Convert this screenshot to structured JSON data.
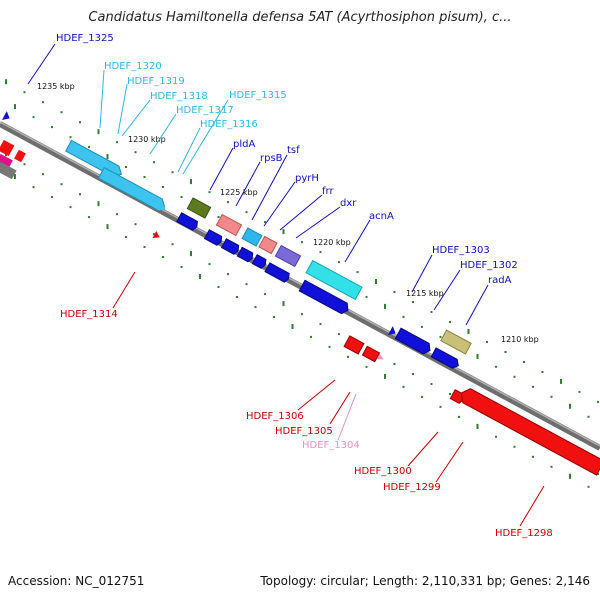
{
  "title": "Candidatus Hamiltonella defensa 5AT (Acyrthosiphon pisum), c...",
  "footer": {
    "accession": "Accession: NC_012751",
    "topology": "Topology: circular; Length: 2,110,331 bp; Genes: 2,146"
  },
  "colors": {
    "backbone": "#8a8a8a",
    "dots": "#2f7d2f",
    "label_blue": "#1010b8",
    "label_cyan": "#33b6e0",
    "label_red": "#c80000",
    "label_pink": "#e890c8"
  },
  "kbp_marks": [
    "1235 kbp",
    "1230 kbp",
    "1225 kbp",
    "1220 kbp",
    "1215 kbp",
    "1210 kbp"
  ],
  "gene_labels": [
    {
      "text": "HDEF_1325",
      "color": "#1010b8"
    },
    {
      "text": "HDEF_1320",
      "color": "#33b6e0"
    },
    {
      "text": "HDEF_1319",
      "color": "#33b6e0"
    },
    {
      "text": "HDEF_1318",
      "color": "#33b6e0"
    },
    {
      "text": "HDEF_1317",
      "color": "#33b6e0"
    },
    {
      "text": "HDEF_1316",
      "color": "#33b6e0"
    },
    {
      "text": "HDEF_1315",
      "color": "#33b6e0"
    },
    {
      "text": "pldA",
      "color": "#1010b8"
    },
    {
      "text": "rpsB",
      "color": "#1010b8"
    },
    {
      "text": "tsf",
      "color": "#1010b8"
    },
    {
      "text": "pyrH",
      "color": "#1010b8"
    },
    {
      "text": "frr",
      "color": "#1010b8"
    },
    {
      "text": "dxr",
      "color": "#1010b8"
    },
    {
      "text": "acnA",
      "color": "#1010b8"
    },
    {
      "text": "HDEF_1303",
      "color": "#1010b8"
    },
    {
      "text": "HDEF_1302",
      "color": "#1010b8"
    },
    {
      "text": "radA",
      "color": "#1010b8"
    },
    {
      "text": "HDEF_1314",
      "color": "#c80000"
    },
    {
      "text": "HDEF_1306",
      "color": "#c80000"
    },
    {
      "text": "HDEF_1305",
      "color": "#c80000"
    },
    {
      "text": "HDEF_1304",
      "color": "#e890c8"
    },
    {
      "text": "HDEF_1300",
      "color": "#c80000"
    },
    {
      "text": "HDEF_1299",
      "color": "#c80000"
    },
    {
      "text": "HDEF_1298",
      "color": "#c80000"
    }
  ]
}
